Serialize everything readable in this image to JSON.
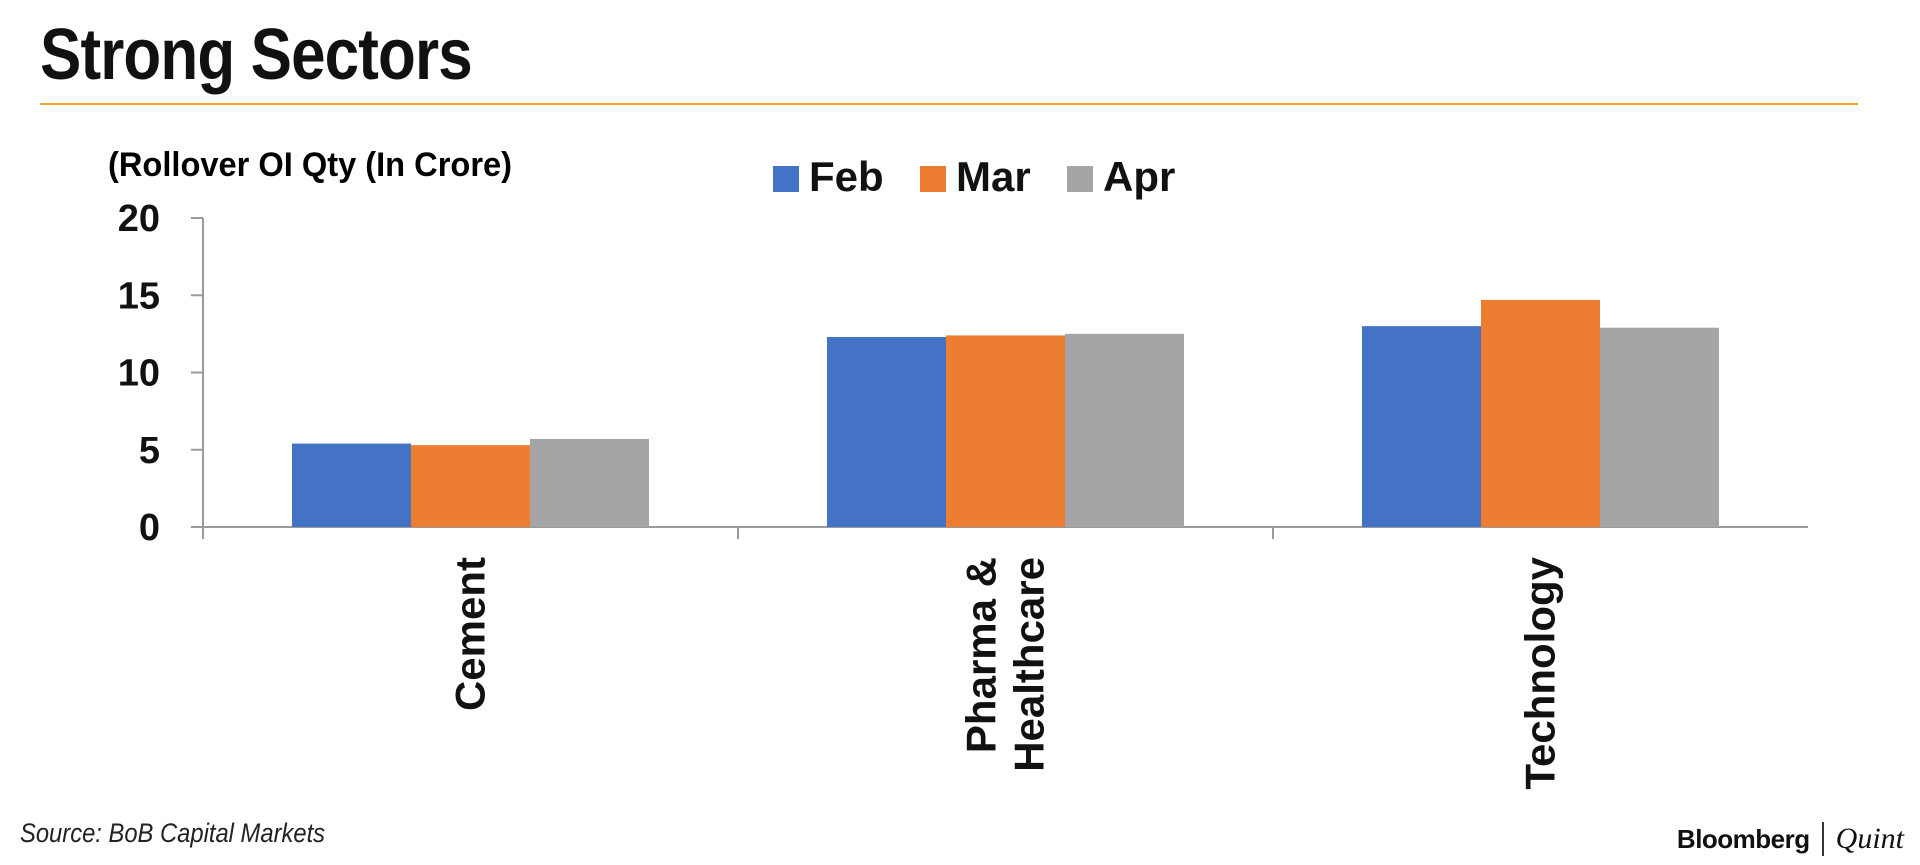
{
  "header": {
    "title": "Strong Sectors"
  },
  "footer": {
    "source": "Source: BoB Capital Markets",
    "brand": "Bloomberg",
    "brand_sub": "Quint"
  },
  "colors": {
    "accent_rule": "#f0a030"
  },
  "chart_data": {
    "type": "bar",
    "ylabel": "(Rollover OI Qty (In Crore)",
    "categories": [
      [
        "Cement"
      ],
      [
        "Pharma &",
        "Healthcare"
      ],
      [
        "Technology"
      ]
    ],
    "series": [
      {
        "name": "Feb",
        "color": "#4472c4",
        "values": [
          5.4,
          12.3,
          13.0
        ]
      },
      {
        "name": "Mar",
        "color": "#ed7d31",
        "values": [
          5.3,
          12.4,
          14.7
        ]
      },
      {
        "name": "Apr",
        "color": "#a5a5a5",
        "values": [
          5.7,
          12.5,
          12.9
        ]
      }
    ],
    "ylim": [
      0,
      20
    ],
    "yticks": [
      "0",
      "5",
      "10",
      "15",
      "20"
    ],
    "legend_position": "top-center",
    "grid": false
  }
}
